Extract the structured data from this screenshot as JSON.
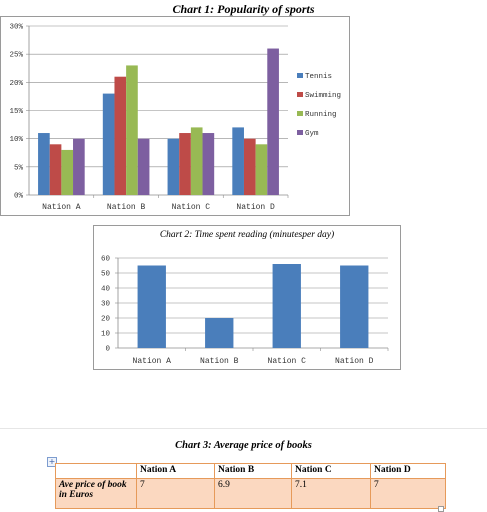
{
  "chart_data": [
    {
      "type": "bar",
      "title": "Chart 1: Popularity of sports",
      "categories": [
        "Nation A",
        "Nation B",
        "Nation C",
        "Nation D"
      ],
      "series": [
        {
          "name": "Tennis",
          "color": "#4a7ebb",
          "values": [
            11,
            18,
            10,
            12
          ]
        },
        {
          "name": "Swimming",
          "color": "#be4b48",
          "values": [
            9,
            21,
            11,
            10
          ]
        },
        {
          "name": "Running",
          "color": "#98b954",
          "values": [
            8,
            23,
            12,
            9
          ]
        },
        {
          "name": "Gym",
          "color": "#7d5fa0",
          "values": [
            10,
            10,
            11,
            26
          ]
        }
      ],
      "ylim": [
        0,
        30
      ],
      "yticks": [
        "0%",
        "5%",
        "10%",
        "15%",
        "20%",
        "25%",
        "30%"
      ],
      "grid": true,
      "legend": "right"
    },
    {
      "type": "bar",
      "title": "Chart 2: Time spent reading (minutesper day)",
      "categories": [
        "Nation A",
        "Nation B",
        "Nation C",
        "Nation D"
      ],
      "series": [
        {
          "color": "#4a7ebb",
          "values": [
            55,
            20,
            56,
            55
          ]
        }
      ],
      "ylim": [
        0,
        60
      ],
      "yticks": [
        "0",
        "10",
        "20",
        "30",
        "40",
        "50",
        "60"
      ],
      "grid": true
    },
    {
      "type": "table",
      "title": "Chart 3: Average price of books",
      "columns": [
        "",
        "Nation A",
        "Nation B",
        "Nation C",
        "Nation D"
      ],
      "rows": [
        {
          "label": "Ave price of book in Euros",
          "values": [
            "7",
            "6.9",
            "7.1",
            "7"
          ]
        }
      ]
    }
  ]
}
